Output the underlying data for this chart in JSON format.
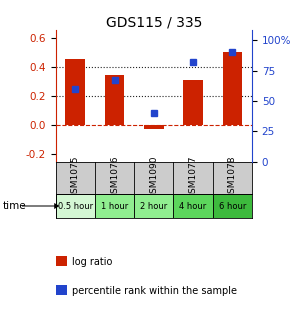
{
  "title": "GDS115 / 335",
  "samples": [
    "GSM1075",
    "GSM1076",
    "GSM1090",
    "GSM1077",
    "GSM1078"
  ],
  "time_labels": [
    "0.5 hour",
    "1 hour",
    "2 hour",
    "4 hour",
    "6 hour"
  ],
  "time_colors": [
    "#d4f7d4",
    "#90ee90",
    "#90ee90",
    "#5cd65c",
    "#3dba3d"
  ],
  "log_ratios": [
    0.45,
    0.34,
    -0.03,
    0.31,
    0.5
  ],
  "percentile_ranks": [
    60,
    67,
    40,
    82,
    90
  ],
  "bar_color": "#cc2200",
  "dot_color": "#2244cc",
  "ylim_left": [
    -0.25,
    0.65
  ],
  "ylim_right": [
    0,
    108.3
  ],
  "yticks_left": [
    -0.2,
    0.0,
    0.2,
    0.4,
    0.6
  ],
  "yticks_right": [
    0,
    25,
    50,
    75,
    100
  ],
  "ytick_labels_right": [
    "0",
    "25",
    "50",
    "75",
    "100%"
  ],
  "hline_y": [
    0.0,
    0.2,
    0.4
  ],
  "hline_styles": [
    "--",
    ":",
    ":"
  ],
  "hline_colors": [
    "#cc2200",
    "#222222",
    "#222222"
  ],
  "background_color": "#ffffff",
  "sample_bg": "#cccccc",
  "legend_items": [
    {
      "color": "#cc2200",
      "label": "log ratio"
    },
    {
      "color": "#2244cc",
      "label": "percentile rank within the sample"
    }
  ]
}
